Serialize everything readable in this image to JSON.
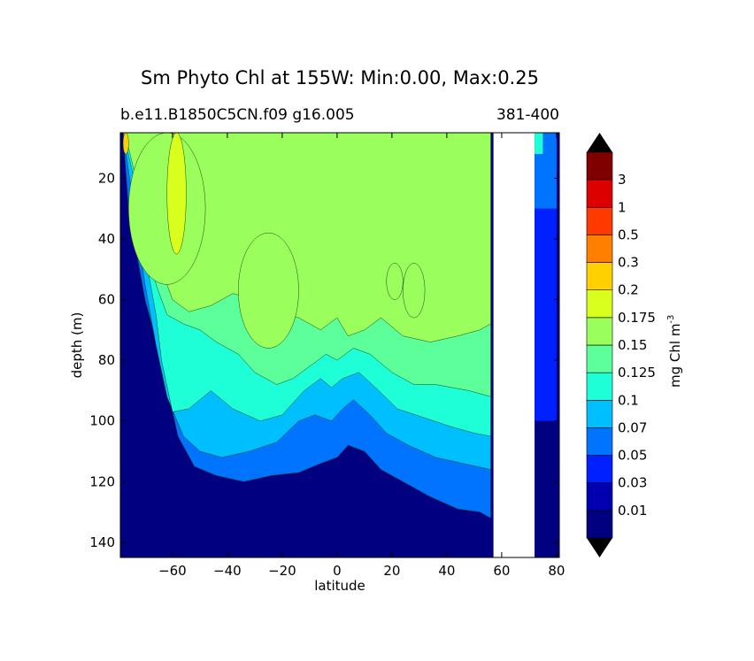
{
  "chart_data": {
    "type": "heatmap",
    "title": "Sm Phyto Chl at 155W: Min:0.00, Max:0.25",
    "subtitle_left": "b.e11.B1850C5CN.f09 g16.005",
    "subtitle_right": "381-400",
    "xlabel": "latitude",
    "ylabel": "depth (m)",
    "xlim": [
      -79,
      81
    ],
    "ylim": [
      145,
      5
    ],
    "xticks": [
      -60,
      -40,
      -20,
      0,
      20,
      40,
      60,
      80
    ],
    "yticks": [
      20,
      40,
      60,
      80,
      100,
      120,
      140
    ],
    "colorbar": {
      "label": "mg Chl m",
      "label_exponent": "-3",
      "extend": "both",
      "levels": [
        "0.01",
        "0.03",
        "0.05",
        "0.07",
        "0.1",
        "0.125",
        "0.15",
        "0.175",
        "0.2",
        "0.3",
        "0.5",
        "1",
        "3"
      ],
      "colors": [
        "#000080",
        "#0000B0",
        "#0020FF",
        "#0074FF",
        "#00BFFF",
        "#1EFFD8",
        "#5CFF9A",
        "#9AFF5C",
        "#D8FF1E",
        "#FFD100",
        "#FF8000",
        "#FF3A00",
        "#DD0000",
        "#800000"
      ],
      "under_color": "#000000",
      "over_color": "#000000"
    },
    "masked_region": {
      "lat_range": [
        57,
        72
      ],
      "depth_range": [
        5,
        145
      ],
      "color": "#ffffff"
    },
    "contour_bands": [
      {
        "level": "0.05",
        "depth_at_lat": [
          [
            -78,
            5
          ],
          [
            -76,
            30
          ],
          [
            -70,
            60
          ],
          [
            -64,
            80
          ],
          [
            -58,
            105
          ],
          [
            -52,
            115
          ],
          [
            -44,
            118
          ],
          [
            -34,
            120
          ],
          [
            -24,
            118
          ],
          [
            -14,
            117
          ],
          [
            -6,
            114
          ],
          [
            0,
            112
          ],
          [
            4,
            108
          ],
          [
            10,
            110
          ],
          [
            16,
            116
          ],
          [
            24,
            120
          ],
          [
            34,
            125
          ],
          [
            44,
            129
          ],
          [
            52,
            130
          ],
          [
            56,
            132
          ]
        ]
      },
      {
        "level": "0.07",
        "depth_at_lat": [
          [
            -78,
            5
          ],
          [
            -74,
            30
          ],
          [
            -70,
            55
          ],
          [
            -66,
            75
          ],
          [
            -62,
            92
          ],
          [
            -56,
            105
          ],
          [
            -50,
            110
          ],
          [
            -42,
            112
          ],
          [
            -32,
            110
          ],
          [
            -22,
            107
          ],
          [
            -14,
            100
          ],
          [
            -8,
            98
          ],
          [
            -2,
            100
          ],
          [
            2,
            96
          ],
          [
            6,
            93
          ],
          [
            12,
            98
          ],
          [
            18,
            104
          ],
          [
            26,
            108
          ],
          [
            36,
            112
          ],
          [
            46,
            114
          ],
          [
            56,
            116
          ]
        ]
      },
      {
        "level": "0.1",
        "depth_at_lat": [
          [
            -78,
            5
          ],
          [
            -74,
            20
          ],
          [
            -70,
            45
          ],
          [
            -66,
            65
          ],
          [
            -64,
            80
          ],
          [
            -60,
            97
          ],
          [
            -54,
            96
          ],
          [
            -46,
            90
          ],
          [
            -38,
            96
          ],
          [
            -28,
            100
          ],
          [
            -20,
            98
          ],
          [
            -12,
            90
          ],
          [
            -6,
            86
          ],
          [
            -2,
            89
          ],
          [
            2,
            86
          ],
          [
            8,
            84
          ],
          [
            14,
            89
          ],
          [
            22,
            96
          ],
          [
            32,
            99
          ],
          [
            42,
            102
          ],
          [
            50,
            104
          ],
          [
            56,
            105
          ]
        ]
      },
      {
        "level": "0.125",
        "depth_at_lat": [
          [
            -78,
            5
          ],
          [
            -74,
            15
          ],
          [
            -70,
            35
          ],
          [
            -66,
            55
          ],
          [
            -62,
            65
          ],
          [
            -56,
            68
          ],
          [
            -50,
            70
          ],
          [
            -44,
            74
          ],
          [
            -36,
            78
          ],
          [
            -30,
            84
          ],
          [
            -22,
            88
          ],
          [
            -16,
            86
          ],
          [
            -10,
            82
          ],
          [
            -4,
            78
          ],
          [
            0,
            80
          ],
          [
            6,
            76
          ],
          [
            12,
            78
          ],
          [
            20,
            84
          ],
          [
            28,
            88
          ],
          [
            36,
            88
          ],
          [
            42,
            89
          ],
          [
            48,
            90
          ],
          [
            56,
            92
          ]
        ]
      },
      {
        "level": "0.15",
        "depth_at_lat": [
          [
            -78,
            5
          ],
          [
            -76,
            10
          ],
          [
            -72,
            25
          ],
          [
            -66,
            45
          ],
          [
            -60,
            60
          ],
          [
            -54,
            64
          ],
          [
            -46,
            62
          ],
          [
            -38,
            58
          ],
          [
            -30,
            60
          ],
          [
            -22,
            64
          ],
          [
            -14,
            66
          ],
          [
            -6,
            70
          ],
          [
            0,
            66
          ],
          [
            4,
            72
          ],
          [
            10,
            70
          ],
          [
            16,
            66
          ],
          [
            24,
            72
          ],
          [
            34,
            74
          ],
          [
            44,
            72
          ],
          [
            52,
            70
          ],
          [
            56,
            68
          ]
        ]
      }
    ],
    "high_patches": [
      {
        "level": "0.15",
        "lat_range": [
          -76,
          -48
        ],
        "depth_range": [
          5,
          55
        ]
      },
      {
        "level": "0.175",
        "lat_range": [
          -62,
          -55
        ],
        "depth_range": [
          5,
          45
        ]
      },
      {
        "level": "0.15",
        "lat_range": [
          -36,
          -14
        ],
        "depth_range": [
          38,
          76
        ]
      },
      {
        "level": "0.15",
        "lat_range": [
          18,
          24
        ],
        "depth_range": [
          48,
          60
        ]
      },
      {
        "level": "0.15",
        "lat_range": [
          24,
          32
        ],
        "depth_range": [
          48,
          66
        ]
      },
      {
        "level": "0.2",
        "lat_range": [
          -78,
          -76
        ],
        "depth_range": [
          5,
          12
        ]
      }
    ],
    "right_bands": [
      {
        "level": "0.1",
        "lat_range": [
          72,
          75
        ],
        "depth_range": [
          5,
          12
        ]
      },
      {
        "level": "0.05",
        "lat_range": [
          72,
          80
        ],
        "depth_range": [
          5,
          30
        ]
      },
      {
        "level": "0.03",
        "lat_range": [
          72,
          80
        ],
        "depth_range": [
          30,
          100
        ]
      }
    ]
  }
}
